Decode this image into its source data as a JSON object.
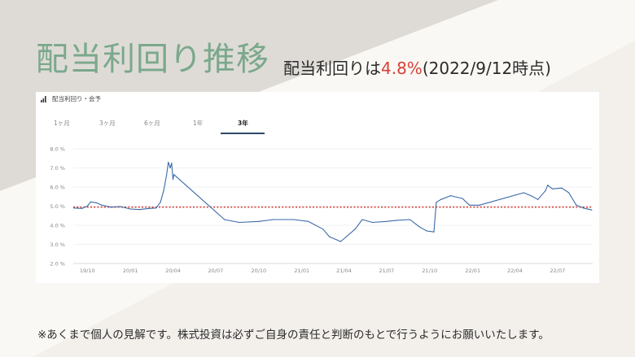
{
  "header": {
    "title": "配当利回り推移",
    "subtitle_prefix": "配当利回りは",
    "subtitle_value": "4.8%",
    "subtitle_suffix": "(2022/9/12時点)"
  },
  "panel": {
    "title": "配当利回り・会予",
    "tabs": [
      {
        "label": "1ヶ月",
        "active": false
      },
      {
        "label": "3ヶ月",
        "active": false
      },
      {
        "label": "6ヶ月",
        "active": false
      },
      {
        "label": "1年",
        "active": false
      },
      {
        "label": "3年",
        "active": true
      }
    ]
  },
  "chart_data": {
    "type": "line",
    "title": "",
    "xlabel": "",
    "ylabel": "",
    "ylim": [
      2.0,
      8.0
    ],
    "y_ticks": [
      "8.0 %",
      "7.0 %",
      "6.0 %",
      "5.0 %",
      "4.0 %",
      "3.0 %",
      "2.0 %"
    ],
    "x_ticks": [
      "19/10",
      "20/01",
      "20/04",
      "20/07",
      "20/10",
      "21/01",
      "21/04",
      "21/07",
      "21/10",
      "22/01",
      "22/04",
      "22/07"
    ],
    "x_start": "2019-09",
    "x_end": "2022-09",
    "grid": true,
    "reference_line": 4.95,
    "series": [
      {
        "name": "",
        "color": "#3a6aa8",
        "points": [
          [
            "2019-09-02",
            4.9
          ],
          [
            "2019-09-20",
            4.88
          ],
          [
            "2019-10-01",
            5.0
          ],
          [
            "2019-10-08",
            5.22
          ],
          [
            "2019-10-20",
            5.18
          ],
          [
            "2019-11-01",
            5.05
          ],
          [
            "2019-11-20",
            4.95
          ],
          [
            "2019-12-10",
            4.98
          ],
          [
            "2020-01-01",
            4.85
          ],
          [
            "2020-01-20",
            4.82
          ],
          [
            "2020-02-10",
            4.88
          ],
          [
            "2020-02-25",
            4.9
          ],
          [
            "2020-03-05",
            5.2
          ],
          [
            "2020-03-12",
            5.8
          ],
          [
            "2020-03-18",
            6.6
          ],
          [
            "2020-03-22",
            7.3
          ],
          [
            "2020-03-26",
            7.0
          ],
          [
            "2020-03-29",
            7.25
          ],
          [
            "2020-04-01",
            6.4
          ],
          [
            "2020-04-03",
            6.65
          ],
          [
            "2020-07-20",
            4.3
          ],
          [
            "2020-08-20",
            4.15
          ],
          [
            "2020-10-01",
            4.2
          ],
          [
            "2020-11-01",
            4.3
          ],
          [
            "2020-12-15",
            4.3
          ],
          [
            "2021-01-15",
            4.2
          ],
          [
            "2021-02-15",
            3.8
          ],
          [
            "2021-03-01",
            3.4
          ],
          [
            "2021-03-25",
            3.15
          ],
          [
            "2021-04-25",
            3.8
          ],
          [
            "2021-05-10",
            4.3
          ],
          [
            "2021-06-01",
            4.15
          ],
          [
            "2021-07-01",
            4.2
          ],
          [
            "2021-07-20",
            4.25
          ],
          [
            "2021-08-20",
            4.3
          ],
          [
            "2021-09-10",
            3.9
          ],
          [
            "2021-09-25",
            3.7
          ],
          [
            "2021-10-10",
            3.65
          ],
          [
            "2021-10-15",
            5.2
          ],
          [
            "2021-10-25",
            5.35
          ],
          [
            "2021-11-15",
            5.55
          ],
          [
            "2021-12-10",
            5.4
          ],
          [
            "2021-12-25",
            5.05
          ],
          [
            "2022-01-15",
            5.05
          ],
          [
            "2022-04-20",
            5.7
          ],
          [
            "2022-05-05",
            5.55
          ],
          [
            "2022-05-20",
            5.35
          ],
          [
            "2022-06-05",
            5.8
          ],
          [
            "2022-06-10",
            6.1
          ],
          [
            "2022-06-20",
            5.9
          ],
          [
            "2022-07-10",
            5.95
          ],
          [
            "2022-07-25",
            5.7
          ],
          [
            "2022-08-10",
            5.05
          ],
          [
            "2022-08-25",
            4.9
          ],
          [
            "2022-09-12",
            4.8
          ]
        ]
      }
    ]
  },
  "footnote": "※あくまで個人の見解です。株式投資は必ずご自身の責任と判断のもとで行うようにお願いいたします。",
  "colors": {
    "title_green": "#7ba88c",
    "highlight_red": "#d8413a",
    "line_blue": "#3a6aa8",
    "reference_red": "#d8413a",
    "tab_underline": "#2d4a66"
  }
}
